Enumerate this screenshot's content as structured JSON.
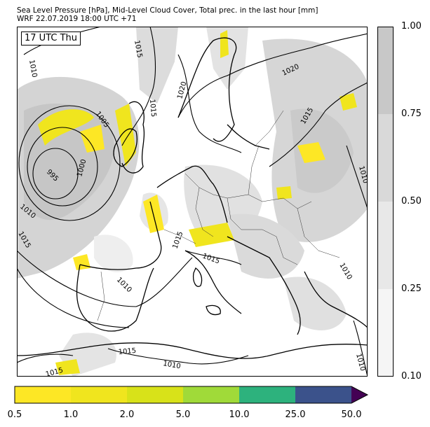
{
  "title": {
    "line1": "Sea Level Pressure [hPa], Mid-Level Cloud Cover, Total prec. in the last hour [mm]",
    "line2": "WRF 22.07.2019 18:00 UTC +71"
  },
  "time_label": "17 UTC Thu",
  "isobar_labels": [
    "1010",
    "1005",
    "1000",
    "995",
    "1010",
    "1015",
    "1015",
    "1020",
    "1020",
    "1015",
    "1010",
    "1015",
    "1010",
    "1015",
    "1010",
    "1015",
    "1010",
    "1015",
    "1015",
    "1010"
  ],
  "cloud_colorbar": {
    "ticks": [
      "1.00",
      "0.75",
      "0.50",
      "0.25",
      "0.10"
    ],
    "colors": [
      "#c8c8c8",
      "#d9d9d9",
      "#e8e8e8",
      "#f5f5f5"
    ]
  },
  "precip_colorbar": {
    "ticks": [
      "0.5",
      "1.0",
      "2.0",
      "5.0",
      "10.0",
      "25.0",
      "50.0"
    ],
    "colors": [
      "#fde725",
      "#f0e51e",
      "#d8e219",
      "#a0da39",
      "#2db27d",
      "#3b528b",
      "#440154"
    ]
  }
}
